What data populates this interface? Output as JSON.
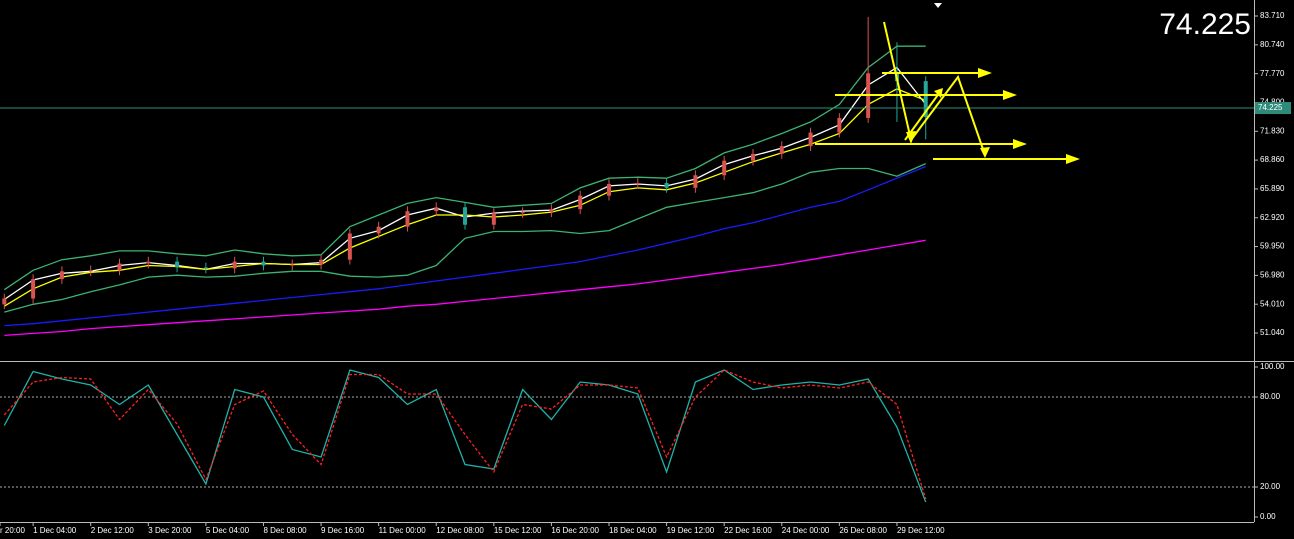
{
  "chart_data": [
    {
      "type": "candlestick",
      "x": [
        -4,
        0,
        4,
        8,
        12,
        16,
        20,
        24,
        28,
        32,
        36,
        40,
        44,
        48,
        52,
        56,
        60,
        64,
        68,
        72,
        76,
        80,
        84,
        88,
        92,
        96,
        100,
        104,
        108,
        112,
        116,
        120,
        124
      ],
      "open": [
        54.0,
        54.6,
        56.6,
        57.4,
        57.5,
        58.2,
        58.4,
        57.8,
        57.7,
        58.4,
        58.0,
        58.1,
        58.6,
        61.3,
        62.0,
        63.6,
        64.0,
        62.2,
        63.4,
        63.5,
        63.8,
        65.2,
        66.4,
        66.5,
        66.0,
        67.3,
        68.8,
        69.5,
        70.3,
        71.7,
        73.2,
        77.8,
        77.0
      ],
      "high": [
        55.1,
        57.1,
        57.9,
        58.0,
        58.7,
        58.9,
        58.9,
        58.3,
        58.9,
        58.9,
        58.6,
        59.1,
        61.8,
        62.5,
        64.1,
        64.5,
        64.5,
        63.9,
        64.0,
        64.3,
        65.7,
        66.9,
        67.0,
        67.0,
        67.8,
        69.3,
        70.0,
        70.8,
        72.2,
        73.7,
        83.6,
        81.0,
        77.5
      ],
      "low": [
        53.5,
        54.1,
        56.1,
        56.9,
        57.0,
        57.7,
        57.3,
        57.2,
        57.2,
        57.5,
        57.5,
        57.6,
        58.1,
        60.8,
        61.5,
        63.1,
        61.7,
        61.7,
        62.9,
        63.0,
        63.3,
        64.7,
        65.9,
        65.5,
        65.5,
        66.8,
        68.3,
        69.0,
        69.8,
        71.2,
        72.7,
        72.8,
        71.0
      ],
      "close": [
        54.6,
        56.6,
        57.4,
        57.5,
        58.2,
        58.4,
        57.8,
        57.7,
        58.4,
        58.0,
        58.1,
        58.6,
        61.3,
        62.0,
        63.6,
        64.0,
        62.2,
        63.4,
        63.5,
        63.8,
        65.2,
        66.4,
        66.5,
        66.0,
        67.3,
        68.8,
        69.5,
        70.3,
        71.7,
        73.2,
        77.8,
        77.0,
        73.3
      ],
      "up_color": "#d9534f",
      "down_color": "#26a69a",
      "series": [
        {
          "color": "#ffffff",
          "values": [
            54.5,
            56.5,
            57.2,
            57.4,
            58.0,
            58.3,
            58.0,
            57.6,
            58.2,
            58.2,
            58.1,
            58.3,
            60.8,
            61.6,
            63.2,
            63.9,
            63.0,
            63.4,
            63.6,
            63.7,
            64.8,
            66.2,
            66.4,
            66.2,
            66.9,
            68.4,
            69.3,
            70.1,
            71.2,
            72.5,
            76.6,
            78.4,
            74.6
          ]
        },
        {
          "color": "#ffff00",
          "values": [
            53.8,
            55.6,
            56.8,
            57.3,
            57.5,
            58.0,
            57.9,
            57.6,
            57.9,
            58.2,
            58.1,
            58.1,
            59.8,
            61.0,
            62.2,
            63.2,
            63.2,
            63.0,
            63.2,
            63.5,
            64.2,
            65.6,
            66.0,
            65.8,
            66.5,
            67.6,
            68.7,
            69.6,
            70.5,
            71.6,
            74.6,
            76.2,
            75.0
          ]
        },
        {
          "color": "#3cb371",
          "values": [
            55.5,
            57.5,
            58.6,
            59.0,
            59.5,
            59.5,
            59.2,
            59.0,
            59.6,
            59.2,
            59.0,
            59.1,
            62.0,
            63.2,
            64.4,
            65.0,
            64.5,
            64.0,
            64.2,
            64.4,
            66.0,
            67.0,
            67.1,
            67.0,
            68.0,
            69.6,
            70.5,
            71.6,
            72.8,
            74.6,
            78.4,
            80.6,
            80.6
          ]
        },
        {
          "color": "#3cb371",
          "values": [
            53.2,
            54.0,
            54.5,
            55.3,
            56.0,
            56.8,
            57.0,
            56.8,
            56.9,
            57.2,
            57.4,
            57.4,
            56.9,
            56.8,
            57.0,
            58.0,
            60.8,
            61.5,
            61.5,
            61.6,
            61.3,
            61.6,
            62.8,
            64.0,
            64.5,
            65.0,
            65.5,
            66.4,
            67.6,
            68.0,
            68.0,
            67.2,
            68.5
          ]
        },
        {
          "color": "#1a1aff",
          "values": [
            51.8,
            52.0,
            52.3,
            52.6,
            52.9,
            53.2,
            53.5,
            53.8,
            54.1,
            54.4,
            54.7,
            55.0,
            55.3,
            55.6,
            56.0,
            56.4,
            56.8,
            57.2,
            57.6,
            58.0,
            58.4,
            59.0,
            59.6,
            60.3,
            61.0,
            61.8,
            62.4,
            63.2,
            64.0,
            64.6,
            65.8,
            67.0,
            68.2
          ]
        },
        {
          "color": "#ff00ff",
          "values": [
            50.8,
            51.0,
            51.2,
            51.5,
            51.7,
            51.9,
            52.1,
            52.3,
            52.5,
            52.7,
            52.9,
            53.1,
            53.3,
            53.5,
            53.8,
            54.0,
            54.3,
            54.6,
            54.9,
            55.2,
            55.5,
            55.8,
            56.1,
            56.5,
            56.9,
            57.3,
            57.7,
            58.1,
            58.6,
            59.1,
            59.6,
            60.1,
            60.6
          ]
        }
      ],
      "last_price": 74.225,
      "last_price_color": "#7cfc00",
      "last_price_line_color": "#2e8b7a",
      "xlim": [
        -4.6,
        169.6
      ],
      "ylim": [
        48.26,
        85.36
      ],
      "yticks": [
        {
          "value": 83.71,
          "label": "83.710"
        },
        {
          "value": 80.74,
          "label": "80.740"
        },
        {
          "value": 77.77,
          "label": "77.770"
        },
        {
          "value": 74.8,
          "label": "74.800"
        },
        {
          "value": 71.83,
          "label": "71.830"
        },
        {
          "value": 68.86,
          "label": "68.860"
        },
        {
          "value": 65.89,
          "label": "65.890"
        },
        {
          "value": 62.92,
          "label": "62.920"
        },
        {
          "value": 59.95,
          "label": "59.950"
        },
        {
          "value": 56.98,
          "label": "56.980"
        },
        {
          "value": 54.01,
          "label": "54.010"
        },
        {
          "value": 51.04,
          "label": "51.040"
        }
      ]
    },
    {
      "type": "line",
      "x": [
        -4,
        0,
        4,
        8,
        12,
        16,
        20,
        24,
        28,
        32,
        36,
        40,
        44,
        48,
        52,
        56,
        60,
        64,
        68,
        72,
        76,
        80,
        84,
        88,
        92,
        96,
        100,
        104,
        108,
        112,
        116,
        120,
        124
      ],
      "series": [
        {
          "color": "#20b2aa",
          "values": [
            61,
            97,
            92,
            88,
            75,
            88,
            55,
            22,
            85,
            80,
            45,
            40,
            98,
            93,
            75,
            85,
            35,
            32,
            85,
            65,
            90,
            88,
            82,
            30,
            90,
            98,
            85,
            88,
            90,
            88,
            92,
            60,
            10
          ]
        },
        {
          "color": "#ff2020",
          "dashed": true,
          "values": [
            68,
            90,
            93,
            92,
            65,
            85,
            62,
            25,
            75,
            84,
            55,
            35,
            95,
            95,
            82,
            82,
            55,
            30,
            75,
            72,
            88,
            88,
            86,
            40,
            80,
            98,
            90,
            86,
            88,
            86,
            90,
            75,
            12
          ]
        }
      ],
      "levels": [
        80,
        20
      ],
      "xlim": [
        -4.6,
        169.6
      ],
      "ylim": [
        -3.33,
        103.33
      ],
      "yticks": [
        {
          "value": 100,
          "label": "100.00"
        },
        {
          "value": 80,
          "label": "80.00"
        },
        {
          "value": 20,
          "label": "20.00"
        },
        {
          "value": 0,
          "label": "0.00"
        }
      ],
      "xticks": [
        {
          "value": -4.6,
          "label": "r 20:00"
        },
        {
          "value": 0,
          "label": "1 Dec 04:00"
        },
        {
          "value": 8,
          "label": "2 Dec 12:00"
        },
        {
          "value": 16,
          "label": "3 Dec 20:00"
        },
        {
          "value": 24,
          "label": "5 Dec 04:00"
        },
        {
          "value": 32,
          "label": "8 Dec 08:00"
        },
        {
          "value": 40,
          "label": "9 Dec 16:00"
        },
        {
          "value": 48,
          "label": "11 Dec 00:00"
        },
        {
          "value": 56,
          "label": "12 Dec 08:00"
        },
        {
          "value": 64,
          "label": "15 Dec 12:00"
        },
        {
          "value": 72,
          "label": "16 Dec 20:00"
        },
        {
          "value": 80,
          "label": "18 Dec 04:00"
        },
        {
          "value": 88,
          "label": "19 Dec 12:00"
        },
        {
          "value": 96,
          "label": "22 Dec 16:00"
        },
        {
          "value": 104,
          "label": "24 Dec 00:00"
        },
        {
          "value": 112,
          "label": "26 Dec 08:00"
        },
        {
          "value": 120,
          "label": "29 Dec 12:00"
        }
      ]
    }
  ]
}
